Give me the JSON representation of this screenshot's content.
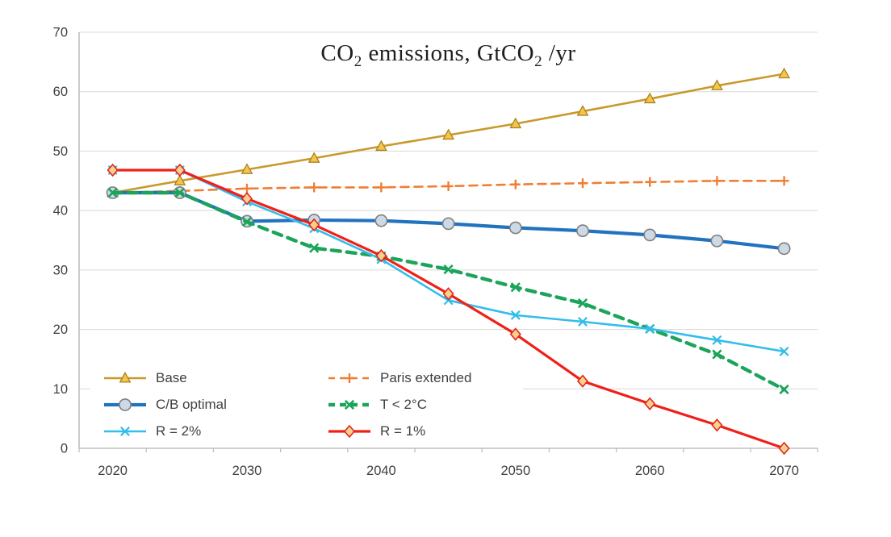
{
  "chart_data": {
    "type": "line",
    "title": "CO₂ emissions, GtCO₂ /yr",
    "title_parts": [
      "CO",
      "2",
      " emissions, GtCO",
      "2",
      " /yr"
    ],
    "x": [
      2020,
      2025,
      2030,
      2035,
      2040,
      2045,
      2050,
      2055,
      2060,
      2065,
      2070
    ],
    "x_tick_labels": [
      "2020",
      "2030",
      "2040",
      "2050",
      "2060",
      "2070"
    ],
    "x_tick_label_indexes": [
      0,
      2,
      4,
      6,
      8,
      10
    ],
    "y_ticks": [
      0,
      10,
      20,
      30,
      40,
      50,
      60,
      70
    ],
    "ylim": [
      0,
      70
    ],
    "grid": "horizontal",
    "legend_position": "inside-bottom-left",
    "series": [
      {
        "name": "Base",
        "color": "#C9992B",
        "dash": null,
        "width": 2.6,
        "marker": {
          "type": "triangle",
          "fill": "#F6C44B",
          "stroke": "#A8821F",
          "sw": 1.3
        },
        "values": [
          43,
          45,
          46.9,
          48.8,
          50.8,
          52.7,
          54.6,
          56.7,
          58.8,
          61.0,
          63.0
        ]
      },
      {
        "name": "Paris extended",
        "color": "#F07E32",
        "dash": "10,7",
        "width": 2.6,
        "marker": {
          "type": "plus",
          "fill": "none",
          "stroke": "#F07E32",
          "sw": 2.4
        },
        "values": [
          43,
          43.3,
          43.7,
          43.9,
          43.9,
          44.1,
          44.4,
          44.6,
          44.8,
          45.0,
          45.0
        ]
      },
      {
        "name": "C/B optimal",
        "color": "#2173BE",
        "dash": null,
        "width": 4.2,
        "marker": {
          "type": "circle",
          "fill": "#CDD9E5",
          "stroke": "#7F7F7F",
          "sw": 1.6
        },
        "values": [
          43,
          43,
          38.2,
          38.4,
          38.3,
          37.8,
          37.1,
          36.6,
          35.9,
          34.9,
          33.6
        ]
      },
      {
        "name": "T < 2°C",
        "color": "#1CA45A",
        "dash": "11,8",
        "width": 4.4,
        "marker": {
          "type": "x",
          "fill": "none",
          "stroke": "#1CA45A",
          "sw": 2.6
        },
        "values": [
          43,
          43,
          38.1,
          33.7,
          32.3,
          30.1,
          27.1,
          24.4,
          20.1,
          15.8,
          9.9
        ]
      },
      {
        "name": "R = 2%",
        "color": "#33BDEC",
        "dash": null,
        "width": 2.6,
        "marker": {
          "type": "x",
          "fill": "none",
          "stroke": "#33BDEC",
          "sw": 2.2
        },
        "values": [
          46.8,
          46.8,
          41.5,
          37.0,
          31.8,
          24.9,
          22.4,
          21.3,
          20.1,
          18.2,
          16.3
        ]
      },
      {
        "name": "R = 1%",
        "color": "#EF2018",
        "dash": null,
        "width": 3.2,
        "marker": {
          "type": "diamond",
          "fill": "#FAD08C",
          "stroke": "#E3261D",
          "sw": 1.6
        },
        "values": [
          46.8,
          46.8,
          42.0,
          37.6,
          32.4,
          26.0,
          19.2,
          11.3,
          7.5,
          3.9,
          0
        ]
      }
    ],
    "legend_columns": [
      [
        0,
        2,
        4
      ],
      [
        1,
        3,
        5
      ]
    ],
    "colors": {
      "gridline": "#D9D9D9",
      "axis": "#BFBFBF",
      "tick_label": "#3F3F3F",
      "title": "#1F1F1F",
      "legend_text": "#3F3F3F",
      "background": "#FFFFFF"
    }
  }
}
